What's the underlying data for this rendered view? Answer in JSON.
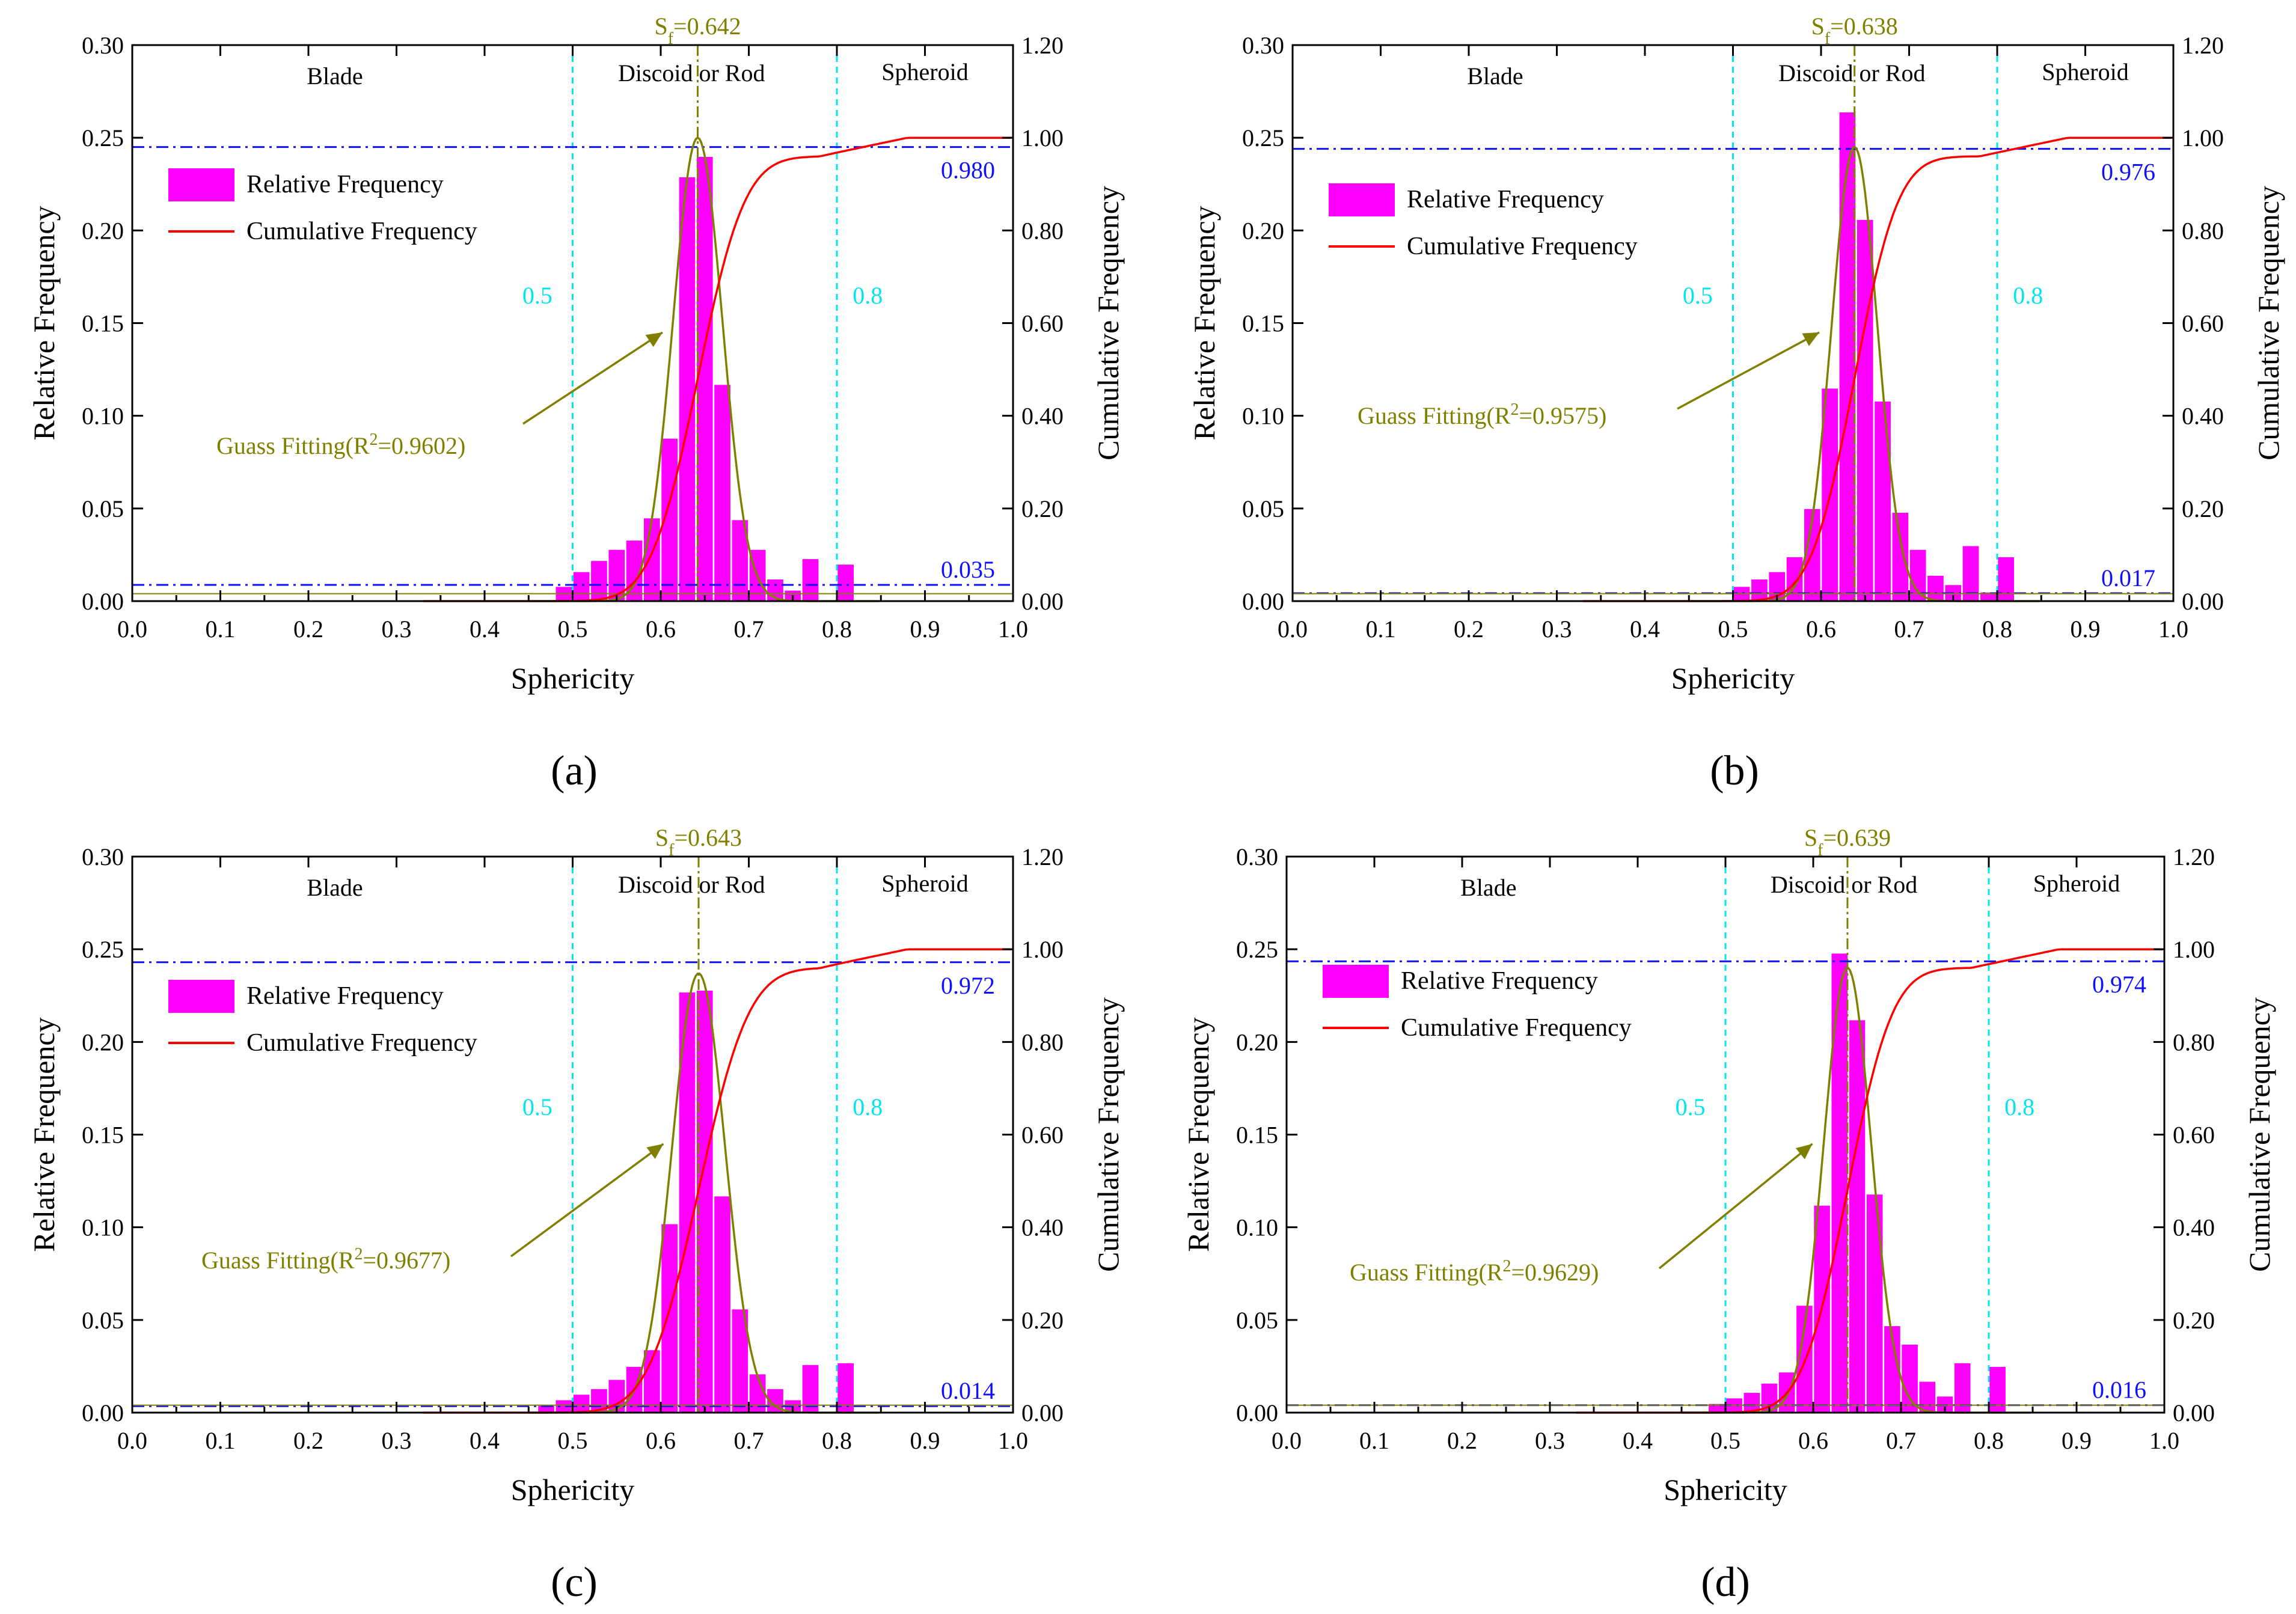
{
  "colors": {
    "bar": "#ff00ff",
    "cumulative": "#ff0000",
    "gauss": "#808000",
    "boundary": "#00e5ee",
    "threshold": "#1010ff",
    "axis": "#000000"
  },
  "legend": {
    "relative": "Relative Frequency",
    "cumulative": "Cumulative Frequency"
  },
  "axes": {
    "xlabel": "Sphericity",
    "ylabel_left": "Relative Frequency",
    "ylabel_right": "Cumulative Frequency",
    "xticks": [
      "0.0",
      "0.1",
      "0.2",
      "0.3",
      "0.4",
      "0.5",
      "0.6",
      "0.7",
      "0.8",
      "0.9",
      "1.0"
    ],
    "yticks_left": [
      "0.00",
      "0.05",
      "0.10",
      "0.15",
      "0.20",
      "0.25",
      "0.30"
    ],
    "yticks_right": [
      "0.00",
      "0.20",
      "0.40",
      "0.60",
      "0.80",
      "1.00",
      "1.20"
    ]
  },
  "regions": {
    "blade": "Blade",
    "discoid": "Discoid or Rod",
    "spheroid": "Spheroid",
    "low_boundary": "0.5",
    "high_boundary": "0.8"
  },
  "chart_data": [
    {
      "panel": "(a)",
      "type": "bar",
      "sf_label": "Sf=0.642",
      "sf_value": 0.642,
      "gauss_label": "Guass Fitting(R2=0.9602)",
      "gauss_r2": 0.9602,
      "gauss": {
        "mean": 0.642,
        "sigma": 0.028,
        "amplitude": 0.25
      },
      "upper_threshold": 0.98,
      "upper_label": "0.980",
      "lower_threshold": 0.035,
      "lower_label": "0.035",
      "xlim": [
        0,
        1
      ],
      "ylim": [
        0,
        0.3
      ],
      "y2lim": [
        0,
        1.2
      ],
      "bins": [
        0.49,
        0.51,
        0.53,
        0.55,
        0.57,
        0.59,
        0.61,
        0.63,
        0.65,
        0.67,
        0.69,
        0.71,
        0.73,
        0.75,
        0.77,
        0.81
      ],
      "values": [
        0.008,
        0.016,
        0.022,
        0.028,
        0.033,
        0.045,
        0.088,
        0.229,
        0.24,
        0.117,
        0.044,
        0.028,
        0.012,
        0.006,
        0.023,
        0.02
      ]
    },
    {
      "panel": "(b)",
      "type": "bar",
      "sf_label": "Sf=0.638",
      "sf_value": 0.638,
      "gauss_label": "Guass Fitting(R2=0.9575)",
      "gauss_r2": 0.9575,
      "gauss": {
        "mean": 0.638,
        "sigma": 0.026,
        "amplitude": 0.245
      },
      "upper_threshold": 0.976,
      "upper_label": "0.976",
      "lower_threshold": 0.017,
      "lower_label": "0.017",
      "xlim": [
        0,
        1
      ],
      "ylim": [
        0,
        0.3
      ],
      "y2lim": [
        0,
        1.2
      ],
      "bins": [
        0.51,
        0.53,
        0.55,
        0.57,
        0.59,
        0.61,
        0.63,
        0.65,
        0.67,
        0.69,
        0.71,
        0.73,
        0.75,
        0.77,
        0.79,
        0.81
      ],
      "values": [
        0.008,
        0.012,
        0.016,
        0.024,
        0.05,
        0.115,
        0.264,
        0.206,
        0.108,
        0.048,
        0.028,
        0.014,
        0.009,
        0.03,
        0.005,
        0.024
      ]
    },
    {
      "panel": "(c)",
      "type": "bar",
      "sf_label": "Sf=0.643",
      "sf_value": 0.643,
      "gauss_label": "Guass Fitting(R2=0.9677)",
      "gauss_r2": 0.9677,
      "gauss": {
        "mean": 0.643,
        "sigma": 0.03,
        "amplitude": 0.237
      },
      "upper_threshold": 0.972,
      "upper_label": "0.972",
      "lower_threshold": 0.014,
      "lower_label": "0.014",
      "xlim": [
        0,
        1
      ],
      "ylim": [
        0,
        0.3
      ],
      "y2lim": [
        0,
        1.2
      ],
      "bins": [
        0.47,
        0.49,
        0.51,
        0.53,
        0.55,
        0.57,
        0.59,
        0.61,
        0.63,
        0.65,
        0.67,
        0.69,
        0.71,
        0.73,
        0.75,
        0.77,
        0.81
      ],
      "values": [
        0.004,
        0.007,
        0.01,
        0.013,
        0.018,
        0.025,
        0.034,
        0.102,
        0.227,
        0.228,
        0.117,
        0.056,
        0.021,
        0.013,
        0.007,
        0.026,
        0.027
      ]
    },
    {
      "panel": "(d)",
      "type": "bar",
      "sf_label": "Sf=0.639",
      "sf_value": 0.639,
      "gauss_label": "Guass Fitting(R2=0.9629)",
      "gauss_r2": 0.9629,
      "gauss": {
        "mean": 0.639,
        "sigma": 0.027,
        "amplitude": 0.24
      },
      "upper_threshold": 0.974,
      "upper_label": "0.974",
      "lower_threshold": 0.016,
      "lower_label": "0.016",
      "xlim": [
        0,
        1
      ],
      "ylim": [
        0,
        0.3
      ],
      "y2lim": [
        0,
        1.2
      ],
      "bins": [
        0.49,
        0.51,
        0.53,
        0.55,
        0.57,
        0.59,
        0.61,
        0.63,
        0.65,
        0.67,
        0.69,
        0.71,
        0.73,
        0.75,
        0.77,
        0.81
      ],
      "values": [
        0.005,
        0.008,
        0.011,
        0.016,
        0.022,
        0.058,
        0.112,
        0.248,
        0.212,
        0.118,
        0.047,
        0.037,
        0.017,
        0.009,
        0.027,
        0.025
      ]
    }
  ]
}
